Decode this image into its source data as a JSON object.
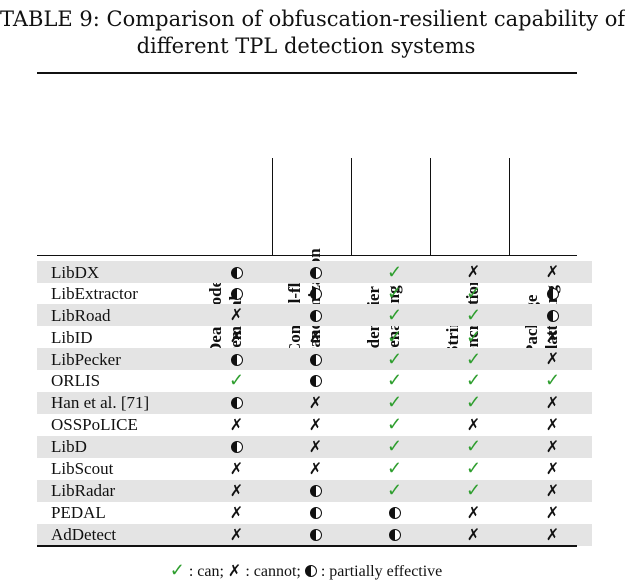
{
  "caption": {
    "line1": "TABLE 9: Comparison of obfuscation-resilient capability of",
    "line2": "different TPL detection systems"
  },
  "columns": [
    {
      "line1": "Dead code",
      "line2": "removal"
    },
    {
      "line1": "Control-flow",
      "line2": "randomization"
    },
    {
      "line1": "Identifier",
      "line2": "renaming"
    },
    {
      "line1": "String",
      "line2": "encryption"
    },
    {
      "line1": "Package",
      "line2": "flattening"
    }
  ],
  "symbols": {
    "can": "✓",
    "cannot": "✗",
    "partial": "◐"
  },
  "rows": [
    {
      "name": "LibDX",
      "values": [
        "partial",
        "partial",
        "can",
        "cannot",
        "cannot"
      ]
    },
    {
      "name": "LibExtractor",
      "values": [
        "partial",
        "partial",
        "can",
        "can",
        "partial"
      ]
    },
    {
      "name": "LibRoad",
      "values": [
        "cannot",
        "partial",
        "can",
        "can",
        "partial"
      ]
    },
    {
      "name": "LibID",
      "values": [
        "cannot",
        "cannot",
        "can",
        "can",
        "cannot"
      ]
    },
    {
      "name": "LibPecker",
      "values": [
        "partial",
        "partial",
        "can",
        "can",
        "cannot"
      ]
    },
    {
      "name": "ORLIS",
      "values": [
        "can",
        "partial",
        "can",
        "can",
        "can"
      ]
    },
    {
      "name": "Han et al. [71]",
      "values": [
        "partial",
        "cannot",
        "can",
        "can",
        "cannot"
      ]
    },
    {
      "name": "OSSPoLICE",
      "values": [
        "cannot",
        "cannot",
        "can",
        "cannot",
        "cannot"
      ]
    },
    {
      "name": "LibD",
      "values": [
        "partial",
        "cannot",
        "can",
        "can",
        "cannot"
      ]
    },
    {
      "name": "LibScout",
      "values": [
        "cannot",
        "cannot",
        "can",
        "can",
        "cannot"
      ]
    },
    {
      "name": "LibRadar",
      "values": [
        "cannot",
        "partial",
        "can",
        "can",
        "cannot"
      ]
    },
    {
      "name": "PEDAL",
      "values": [
        "cannot",
        "partial",
        "partial",
        "cannot",
        "cannot"
      ]
    },
    {
      "name": "AdDetect",
      "values": [
        "cannot",
        "partial",
        "partial",
        "cannot",
        "cannot"
      ]
    }
  ],
  "legend": {
    "can_label": ": can;",
    "cannot_label": ": cannot;",
    "partial_label": ": partially effective"
  }
}
